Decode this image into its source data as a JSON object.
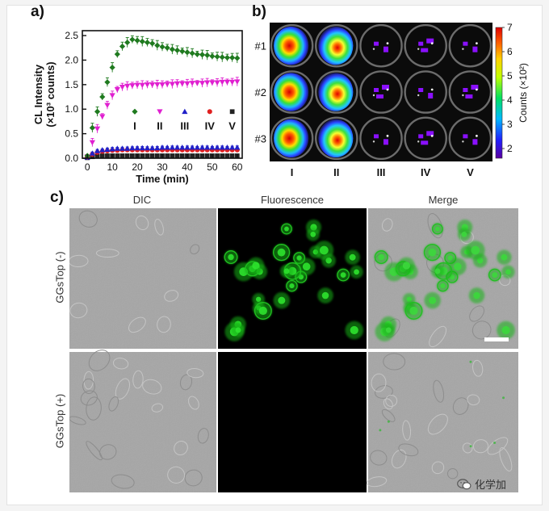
{
  "panels": {
    "a_letter": "a)",
    "b_letter": "b)",
    "c_letter": "c)"
  },
  "chart_data": [
    {
      "type": "line",
      "ylabel_line1": "CL Intensity",
      "ylabel_line2": "(×10³ counts)",
      "xlabel": "Time (min)",
      "xlim": [
        -2,
        62
      ],
      "ylim": [
        0,
        2.6
      ],
      "xticks": [
        0,
        10,
        20,
        30,
        40,
        50,
        60
      ],
      "yticks": [
        0.0,
        0.5,
        1.0,
        1.5,
        2.0,
        2.5
      ],
      "ytick_labels": [
        "0.0",
        "0.5",
        "1.0",
        "1.5",
        "2.0",
        "2.5"
      ],
      "series": [
        {
          "name": "I",
          "color": "#1f7a1f",
          "marker": "diamond",
          "x": [
            0,
            2,
            4,
            6,
            8,
            10,
            12,
            14,
            16,
            18,
            20,
            22,
            24,
            26,
            28,
            30,
            32,
            34,
            36,
            38,
            40,
            42,
            44,
            46,
            48,
            50,
            52,
            54,
            56,
            58,
            60
          ],
          "y": [
            0.05,
            0.62,
            0.95,
            1.25,
            1.55,
            1.85,
            2.12,
            2.28,
            2.36,
            2.42,
            2.4,
            2.38,
            2.36,
            2.34,
            2.3,
            2.27,
            2.25,
            2.22,
            2.2,
            2.18,
            2.16,
            2.14,
            2.12,
            2.11,
            2.1,
            2.08,
            2.07,
            2.06,
            2.05,
            2.05,
            2.04
          ],
          "err": 0.1
        },
        {
          "name": "II",
          "color": "#e020d0",
          "marker": "triangle-down",
          "x": [
            0,
            2,
            4,
            6,
            8,
            10,
            12,
            14,
            16,
            18,
            20,
            22,
            24,
            26,
            28,
            30,
            32,
            34,
            36,
            38,
            40,
            42,
            44,
            46,
            48,
            50,
            52,
            54,
            56,
            58,
            60
          ],
          "y": [
            0.03,
            0.32,
            0.6,
            0.85,
            1.08,
            1.28,
            1.4,
            1.45,
            1.47,
            1.48,
            1.49,
            1.49,
            1.5,
            1.5,
            1.5,
            1.5,
            1.51,
            1.51,
            1.52,
            1.52,
            1.52,
            1.53,
            1.53,
            1.53,
            1.54,
            1.54,
            1.54,
            1.55,
            1.55,
            1.55,
            1.56
          ],
          "err": 0.09
        },
        {
          "name": "III",
          "color": "#2020c8",
          "marker": "triangle-up",
          "x": [
            0,
            2,
            4,
            6,
            8,
            10,
            12,
            14,
            16,
            18,
            20,
            22,
            24,
            26,
            28,
            30,
            32,
            34,
            36,
            38,
            40,
            42,
            44,
            46,
            48,
            50,
            52,
            54,
            56,
            58,
            60
          ],
          "y": [
            0.02,
            0.1,
            0.15,
            0.17,
            0.18,
            0.19,
            0.2,
            0.2,
            0.2,
            0.21,
            0.21,
            0.21,
            0.21,
            0.21,
            0.21,
            0.22,
            0.22,
            0.22,
            0.22,
            0.22,
            0.22,
            0.22,
            0.22,
            0.22,
            0.22,
            0.22,
            0.22,
            0.22,
            0.22,
            0.22,
            0.22
          ],
          "err": 0.03
        },
        {
          "name": "IV",
          "color": "#e02020",
          "marker": "circle",
          "x": [
            0,
            2,
            4,
            6,
            8,
            10,
            12,
            14,
            16,
            18,
            20,
            22,
            24,
            26,
            28,
            30,
            32,
            34,
            36,
            38,
            40,
            42,
            44,
            46,
            48,
            50,
            52,
            54,
            56,
            58,
            60
          ],
          "y": [
            0.02,
            0.08,
            0.12,
            0.14,
            0.15,
            0.16,
            0.16,
            0.17,
            0.17,
            0.17,
            0.17,
            0.17,
            0.17,
            0.17,
            0.17,
            0.17,
            0.17,
            0.17,
            0.17,
            0.17,
            0.17,
            0.17,
            0.17,
            0.17,
            0.17,
            0.17,
            0.17,
            0.17,
            0.17,
            0.17,
            0.17
          ],
          "err": 0.02
        },
        {
          "name": "V",
          "color": "#222222",
          "marker": "square",
          "x": [
            0,
            2,
            4,
            6,
            8,
            10,
            12,
            14,
            16,
            18,
            20,
            22,
            24,
            26,
            28,
            30,
            32,
            34,
            36,
            38,
            40,
            42,
            44,
            46,
            48,
            50,
            52,
            54,
            56,
            58,
            60
          ],
          "y": [
            0.01,
            0.03,
            0.04,
            0.05,
            0.05,
            0.05,
            0.05,
            0.05,
            0.05,
            0.05,
            0.05,
            0.05,
            0.05,
            0.05,
            0.05,
            0.05,
            0.05,
            0.05,
            0.05,
            0.05,
            0.05,
            0.05,
            0.05,
            0.05,
            0.05,
            0.05,
            0.05,
            0.05,
            0.05,
            0.05,
            0.05
          ],
          "err": 0.01
        }
      ],
      "legend_placement": "center-right"
    },
    {
      "type": "heatmap",
      "rows": [
        "#1",
        "#2",
        "#3"
      ],
      "columns": [
        "I",
        "II",
        "III",
        "IV",
        "V"
      ],
      "values": [
        [
          6.8,
          6.2,
          2.1,
          1.8,
          1.7
        ],
        [
          6.5,
          6.4,
          2.0,
          1.9,
          1.9
        ],
        [
          6.9,
          6.6,
          2.2,
          1.8,
          1.8
        ]
      ],
      "colorbar_label": "Counts (×10²)",
      "colorbar_ticks": [
        "2",
        "3",
        "4",
        "5",
        "6",
        "7"
      ],
      "colorbar_range": [
        1.6,
        7
      ]
    }
  ],
  "microscopy": {
    "columns": [
      "DIC",
      "Fluorescence",
      "Merge"
    ],
    "rows": [
      "GGsTop (-)",
      "GGsTop (+)"
    ]
  },
  "watermark": {
    "text": "化学加"
  }
}
